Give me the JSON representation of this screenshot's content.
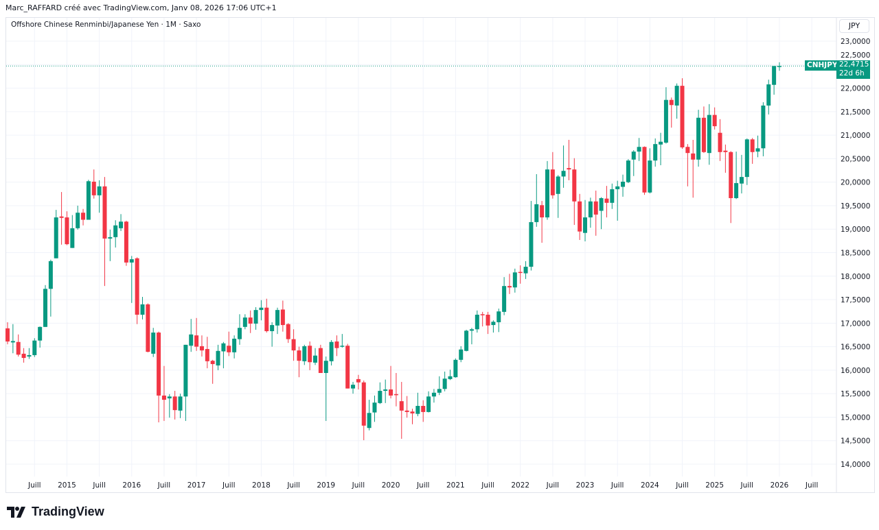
{
  "header": {
    "credit": "Marc_RAFFARD créé avec TradingView.com, Janv 08, 2026 17:06 UTC+1"
  },
  "legend": {
    "title": "Offshore Chinese Renminbi/Japanese Yen · 1M · Saxo"
  },
  "price_axis": {
    "currency": "JPY"
  },
  "last_price": {
    "symbol": "CNHJPY",
    "price": "22,4715",
    "countdown": "22d 6h"
  },
  "logo": {
    "text": "TradingView"
  },
  "colors": {
    "up": "#089981",
    "down": "#f23645",
    "grid": "#f0f3fa"
  },
  "chart_data": {
    "type": "candlestick",
    "interval": "1M",
    "ylim": [
      14.0,
      23.0
    ],
    "grid": true,
    "y_ticks": [
      "14,0000",
      "14,5000",
      "15,0000",
      "15,5000",
      "16,0000",
      "16,5000",
      "17,0000",
      "17,5000",
      "18,0000",
      "18,5000",
      "19,0000",
      "19,5000",
      "20,0000",
      "20,5000",
      "21,0000",
      "21,5000",
      "22,0000",
      "22,5000",
      "23,0000"
    ],
    "x_ticks": [
      {
        "label": "Juill",
        "date": "2014-07"
      },
      {
        "label": "2015",
        "date": "2015-01"
      },
      {
        "label": "Juill",
        "date": "2015-07"
      },
      {
        "label": "2016",
        "date": "2016-01"
      },
      {
        "label": "Juill",
        "date": "2016-07"
      },
      {
        "label": "2017",
        "date": "2017-01"
      },
      {
        "label": "Juill",
        "date": "2017-07"
      },
      {
        "label": "2018",
        "date": "2018-01"
      },
      {
        "label": "Juill",
        "date": "2018-07"
      },
      {
        "label": "2019",
        "date": "2019-01"
      },
      {
        "label": "Juill",
        "date": "2019-07"
      },
      {
        "label": "2020",
        "date": "2020-01"
      },
      {
        "label": "Juill",
        "date": "2020-07"
      },
      {
        "label": "2021",
        "date": "2021-01"
      },
      {
        "label": "Juill",
        "date": "2021-07"
      },
      {
        "label": "2022",
        "date": "2022-01"
      },
      {
        "label": "Juill",
        "date": "2022-07"
      },
      {
        "label": "2023",
        "date": "2023-01"
      },
      {
        "label": "Juill",
        "date": "2023-07"
      },
      {
        "label": "2024",
        "date": "2024-01"
      },
      {
        "label": "Juill",
        "date": "2024-07"
      },
      {
        "label": "2025",
        "date": "2025-01"
      },
      {
        "label": "Juill",
        "date": "2025-07"
      },
      {
        "label": "2026",
        "date": "2026-01"
      },
      {
        "label": "Juill",
        "date": "2026-07"
      }
    ],
    "last_price": 22.4715,
    "candles_columns": [
      "date",
      "open",
      "high",
      "low",
      "close"
    ],
    "candles": [
      [
        "2014-02",
        16.89,
        17.02,
        16.55,
        16.61
      ],
      [
        "2014-03",
        16.59,
        16.98,
        16.36,
        16.62
      ],
      [
        "2014-04",
        16.6,
        16.76,
        16.29,
        16.33
      ],
      [
        "2014-05",
        16.35,
        16.47,
        16.16,
        16.26
      ],
      [
        "2014-06",
        16.29,
        16.47,
        16.24,
        16.32
      ],
      [
        "2014-07",
        16.32,
        16.68,
        16.28,
        16.63
      ],
      [
        "2014-08",
        16.63,
        16.93,
        16.48,
        16.92
      ],
      [
        "2014-09",
        16.92,
        17.81,
        16.92,
        17.73
      ],
      [
        "2014-10",
        17.73,
        18.35,
        17.14,
        18.32
      ],
      [
        "2014-11",
        18.38,
        19.41,
        18.38,
        19.25
      ],
      [
        "2014-12",
        19.27,
        19.79,
        18.67,
        19.24
      ],
      [
        "2015-01",
        19.25,
        19.38,
        18.66,
        18.68
      ],
      [
        "2015-02",
        18.6,
        19.3,
        18.6,
        19.02
      ],
      [
        "2015-03",
        19.02,
        19.5,
        18.99,
        19.35
      ],
      [
        "2015-04",
        19.35,
        19.43,
        19.08,
        19.2
      ],
      [
        "2015-05",
        19.2,
        20.05,
        19.2,
        20.02
      ],
      [
        "2015-06",
        20.01,
        20.27,
        19.65,
        19.72
      ],
      [
        "2015-07",
        19.72,
        20.04,
        19.35,
        19.91
      ],
      [
        "2015-08",
        19.91,
        20.11,
        17.79,
        18.8
      ],
      [
        "2015-09",
        18.8,
        18.99,
        18.32,
        18.83
      ],
      [
        "2015-10",
        18.83,
        19.19,
        18.61,
        19.08
      ],
      [
        "2015-11",
        19.02,
        19.32,
        18.96,
        19.16
      ],
      [
        "2015-12",
        19.16,
        19.18,
        18.22,
        18.29
      ],
      [
        "2016-01",
        18.29,
        18.43,
        17.43,
        18.36
      ],
      [
        "2016-02",
        18.38,
        18.4,
        16.98,
        17.18
      ],
      [
        "2016-03",
        17.18,
        17.56,
        17.08,
        17.4
      ],
      [
        "2016-04",
        17.4,
        17.42,
        16.38,
        16.39
      ],
      [
        "2016-05",
        16.35,
        16.9,
        16.28,
        16.8
      ],
      [
        "2016-06",
        16.8,
        16.82,
        14.89,
        15.46
      ],
      [
        "2016-07",
        15.46,
        16.09,
        14.92,
        15.37
      ],
      [
        "2016-08",
        15.4,
        15.49,
        14.99,
        15.44
      ],
      [
        "2016-09",
        15.44,
        15.56,
        14.95,
        15.15
      ],
      [
        "2016-10",
        15.14,
        15.5,
        14.98,
        15.44
      ],
      [
        "2016-11",
        15.44,
        16.54,
        14.92,
        16.54
      ],
      [
        "2016-12",
        16.52,
        17.09,
        16.39,
        16.76
      ],
      [
        "2017-01",
        16.74,
        17.11,
        16.41,
        16.5
      ],
      [
        "2017-02",
        16.51,
        16.74,
        16.29,
        16.42
      ],
      [
        "2017-03",
        16.45,
        16.71,
        16.04,
        16.19
      ],
      [
        "2017-04",
        16.2,
        16.22,
        15.71,
        16.13
      ],
      [
        "2017-05",
        16.1,
        16.54,
        16.0,
        16.41
      ],
      [
        "2017-06",
        16.4,
        16.6,
        16.04,
        16.57
      ],
      [
        "2017-07",
        16.52,
        16.82,
        16.3,
        16.38
      ],
      [
        "2017-08",
        16.38,
        16.74,
        16.25,
        16.67
      ],
      [
        "2017-09",
        16.66,
        17.19,
        16.54,
        16.9
      ],
      [
        "2017-10",
        16.92,
        17.19,
        16.87,
        17.12
      ],
      [
        "2017-11",
        17.12,
        17.27,
        16.79,
        16.99
      ],
      [
        "2017-12",
        16.99,
        17.34,
        16.86,
        17.28
      ],
      [
        "2018-01",
        17.28,
        17.49,
        17.06,
        17.33
      ],
      [
        "2018-02",
        17.33,
        17.52,
        16.8,
        16.83
      ],
      [
        "2018-03",
        16.83,
        17.02,
        16.5,
        16.96
      ],
      [
        "2018-04",
        16.95,
        17.33,
        16.77,
        17.28
      ],
      [
        "2018-05",
        17.29,
        17.48,
        16.82,
        16.96
      ],
      [
        "2018-06",
        16.98,
        17.0,
        16.58,
        16.66
      ],
      [
        "2018-07",
        16.66,
        16.87,
        16.2,
        16.42
      ],
      [
        "2018-08",
        16.42,
        16.5,
        15.85,
        16.2
      ],
      [
        "2018-09",
        16.19,
        16.54,
        16.11,
        16.51
      ],
      [
        "2018-10",
        16.52,
        16.61,
        16.0,
        16.17
      ],
      [
        "2018-11",
        16.16,
        16.47,
        16.11,
        16.31
      ],
      [
        "2018-12",
        16.47,
        16.54,
        15.94,
        15.94
      ],
      [
        "2019-01",
        15.94,
        16.29,
        14.92,
        16.2
      ],
      [
        "2019-02",
        16.19,
        16.64,
        16.1,
        16.6
      ],
      [
        "2019-03",
        16.61,
        16.74,
        16.3,
        16.47
      ],
      [
        "2019-04",
        16.5,
        16.77,
        16.48,
        16.52
      ],
      [
        "2019-05",
        16.52,
        16.56,
        15.61,
        15.61
      ],
      [
        "2019-06",
        15.61,
        15.75,
        15.5,
        15.69
      ],
      [
        "2019-07",
        15.81,
        15.9,
        15.59,
        15.74
      ],
      [
        "2019-08",
        15.74,
        15.78,
        14.51,
        14.82
      ],
      [
        "2019-09",
        14.77,
        15.37,
        14.72,
        15.09
      ],
      [
        "2019-10",
        15.1,
        15.46,
        14.9,
        15.31
      ],
      [
        "2019-11",
        15.3,
        15.74,
        15.28,
        15.56
      ],
      [
        "2019-12",
        15.56,
        15.8,
        15.3,
        15.59
      ],
      [
        "2020-01",
        15.59,
        16.09,
        15.4,
        15.46
      ],
      [
        "2020-02",
        15.49,
        15.94,
        15.23,
        15.47
      ],
      [
        "2020-03",
        15.34,
        15.75,
        14.54,
        15.14
      ],
      [
        "2020-04",
        15.14,
        15.45,
        14.99,
        15.11
      ],
      [
        "2020-05",
        15.12,
        15.18,
        14.85,
        15.08
      ],
      [
        "2020-06",
        15.07,
        15.52,
        15.02,
        15.24
      ],
      [
        "2020-07",
        15.24,
        15.36,
        14.9,
        15.11
      ],
      [
        "2020-08",
        15.11,
        15.55,
        15.1,
        15.44
      ],
      [
        "2020-09",
        15.44,
        15.6,
        15.31,
        15.52
      ],
      [
        "2020-10",
        15.52,
        15.87,
        15.47,
        15.6
      ],
      [
        "2020-11",
        15.6,
        15.97,
        15.55,
        15.82
      ],
      [
        "2020-12",
        15.81,
        16.01,
        15.79,
        15.87
      ],
      [
        "2021-01",
        15.85,
        16.25,
        15.84,
        16.22
      ],
      [
        "2021-02",
        16.22,
        16.51,
        16.17,
        16.44
      ],
      [
        "2021-03",
        16.41,
        16.86,
        16.4,
        16.84
      ],
      [
        "2021-04",
        16.84,
        16.9,
        16.55,
        16.87
      ],
      [
        "2021-05",
        16.87,
        17.27,
        16.8,
        17.18
      ],
      [
        "2021-06",
        17.19,
        17.24,
        16.93,
        17.17
      ],
      [
        "2021-07",
        17.18,
        17.24,
        16.77,
        16.95
      ],
      [
        "2021-08",
        16.96,
        17.06,
        16.8,
        17.03
      ],
      [
        "2021-09",
        17.02,
        17.31,
        16.81,
        17.25
      ],
      [
        "2021-10",
        17.24,
        17.98,
        17.17,
        17.79
      ],
      [
        "2021-11",
        17.79,
        18.05,
        17.62,
        17.76
      ],
      [
        "2021-12",
        17.76,
        18.16,
        17.65,
        18.08
      ],
      [
        "2022-01",
        18.09,
        18.23,
        17.84,
        18.07
      ],
      [
        "2022-02",
        18.06,
        18.32,
        17.94,
        18.2
      ],
      [
        "2022-03",
        18.2,
        19.6,
        18.12,
        19.15
      ],
      [
        "2022-04",
        19.15,
        20.17,
        19.05,
        19.53
      ],
      [
        "2022-05",
        19.51,
        19.6,
        18.71,
        19.25
      ],
      [
        "2022-06",
        19.25,
        20.45,
        19.2,
        20.27
      ],
      [
        "2022-07",
        20.27,
        20.64,
        19.65,
        19.72
      ],
      [
        "2022-08",
        19.75,
        20.15,
        19.24,
        20.12
      ],
      [
        "2022-09",
        20.12,
        20.78,
        19.88,
        20.24
      ],
      [
        "2022-10",
        20.3,
        20.9,
        20.04,
        20.27
      ],
      [
        "2022-11",
        20.27,
        20.51,
        19.09,
        19.59
      ],
      [
        "2022-12",
        19.59,
        19.75,
        18.77,
        18.95
      ],
      [
        "2023-01",
        18.92,
        19.62,
        18.74,
        19.25
      ],
      [
        "2023-02",
        19.25,
        19.67,
        19.03,
        19.59
      ],
      [
        "2023-03",
        19.59,
        19.82,
        18.86,
        19.31
      ],
      [
        "2023-04",
        19.39,
        19.68,
        19.0,
        19.66
      ],
      [
        "2023-05",
        19.65,
        19.92,
        19.25,
        19.56
      ],
      [
        "2023-06",
        19.56,
        19.97,
        19.43,
        19.85
      ],
      [
        "2023-07",
        19.85,
        20.03,
        19.18,
        19.91
      ],
      [
        "2023-08",
        19.9,
        20.16,
        19.69,
        20.01
      ],
      [
        "2023-09",
        20.0,
        20.49,
        19.98,
        20.46
      ],
      [
        "2023-10",
        20.48,
        20.68,
        20.13,
        20.65
      ],
      [
        "2023-11",
        20.65,
        20.94,
        20.45,
        20.75
      ],
      [
        "2023-12",
        20.75,
        20.76,
        19.73,
        19.78
      ],
      [
        "2024-01",
        19.78,
        20.72,
        19.76,
        20.46
      ],
      [
        "2024-02",
        20.46,
        20.93,
        20.33,
        20.81
      ],
      [
        "2024-03",
        20.8,
        21.05,
        20.36,
        20.86
      ],
      [
        "2024-04",
        20.84,
        22.02,
        20.82,
        21.75
      ],
      [
        "2024-05",
        21.75,
        21.8,
        21.16,
        21.64
      ],
      [
        "2024-06",
        21.63,
        22.1,
        21.35,
        22.05
      ],
      [
        "2024-07",
        22.05,
        22.21,
        20.71,
        20.74
      ],
      [
        "2024-08",
        20.75,
        20.81,
        19.91,
        20.62
      ],
      [
        "2024-09",
        20.61,
        20.9,
        19.67,
        20.48
      ],
      [
        "2024-10",
        20.48,
        21.54,
        20.33,
        21.37
      ],
      [
        "2024-11",
        21.37,
        21.61,
        20.62,
        20.64
      ],
      [
        "2024-12",
        20.62,
        21.66,
        20.37,
        21.43
      ],
      [
        "2025-01",
        21.43,
        21.59,
        21.12,
        21.19
      ],
      [
        "2025-02",
        21.05,
        21.34,
        20.45,
        20.64
      ],
      [
        "2025-03",
        20.67,
        20.8,
        20.2,
        20.64
      ],
      [
        "2025-04",
        20.64,
        20.66,
        19.13,
        19.66
      ],
      [
        "2025-05",
        19.66,
        20.65,
        19.64,
        19.98
      ],
      [
        "2025-06",
        19.97,
        20.58,
        19.76,
        20.11
      ],
      [
        "2025-07",
        20.11,
        20.93,
        19.94,
        20.91
      ],
      [
        "2025-08",
        20.91,
        20.94,
        20.39,
        20.64
      ],
      [
        "2025-09",
        20.65,
        20.99,
        20.53,
        20.72
      ],
      [
        "2025-10",
        20.72,
        21.7,
        20.55,
        21.63
      ],
      [
        "2025-11",
        21.63,
        22.18,
        21.44,
        22.08
      ],
      [
        "2025-12",
        22.07,
        22.47,
        21.86,
        22.47
      ],
      [
        "2026-01",
        22.45,
        22.55,
        22.37,
        22.4715
      ]
    ]
  }
}
